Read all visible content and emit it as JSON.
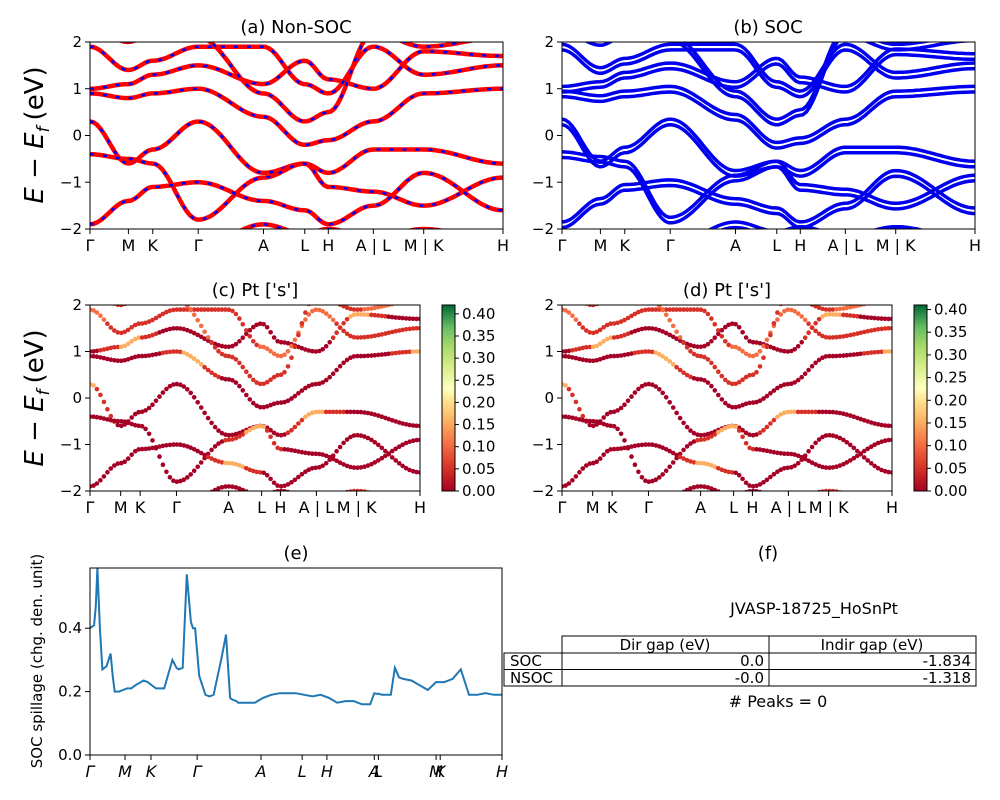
{
  "figure": {
    "panel_a_title": "(a) Non-SOC",
    "panel_b_title": "(b) SOC",
    "panel_c_title": "(c)  Pt ['s']",
    "panel_d_title": "(d) Pt ['s']",
    "panel_e_title": "(e)",
    "panel_f_title": "(f)",
    "energy_ylabel_main": "E − E",
    "energy_ylabel_sub": "f",
    "energy_ylabel_unit": "(eV)",
    "spillage_ylabel": "SOC spillage (chg. den. unit)",
    "kpath_labels": [
      "Γ",
      "M",
      "K",
      "Γ",
      "A",
      "L",
      "H",
      "A | L",
      "M | K",
      "H"
    ],
    "kpath_labels_italic": [
      "Γ",
      "M",
      "K",
      "Γ",
      "A",
      "L",
      "H",
      "A",
      "L",
      "M",
      "K",
      "H"
    ],
    "energy_yticks": [
      "2",
      "1",
      "0",
      "−1",
      "−2"
    ],
    "spillage_yticks": [
      "0.0",
      "0.2",
      "0.4"
    ],
    "colorbar_c_ticks": [
      "0.40",
      "0.35",
      "0.30",
      "0.25",
      "0.20",
      "0.15",
      "0.10",
      "0.05",
      "0.00"
    ],
    "colorbar_d_ticks": [
      "0.40",
      "0.35",
      "0.30",
      "0.25",
      "0.20",
      "0.15",
      "0.10",
      "0.05",
      "0.00"
    ],
    "colors": {
      "nsoc_band": "#ff0000",
      "nsoc_dash": "#0000ff",
      "soc_band": "#0000ee",
      "spillage_line": "#1f77b4"
    }
  },
  "table": {
    "title": "JVASP-18725_HoSnPt",
    "headers": [
      "",
      "Dir gap (eV)",
      "Indir gap (eV)"
    ],
    "rows": [
      {
        "label": "SOC",
        "dir_gap": "0.0",
        "indir_gap": "-1.834"
      },
      {
        "label": "NSOC",
        "dir_gap": "-0.0",
        "indir_gap": "-1.318"
      }
    ],
    "peaks": "# Peaks = 0"
  },
  "chart_data": [
    {
      "type": "line",
      "panel": "a",
      "title": "(a) Non-SOC",
      "ylabel": "E − E_f (eV)",
      "ylim": [
        -2,
        2
      ],
      "kpath": [
        "Γ",
        "M",
        "K",
        "Γ",
        "A",
        "L",
        "H",
        "A | L",
        "M | K",
        "H"
      ],
      "note": "band structure without spin-orbit coupling"
    },
    {
      "type": "line",
      "panel": "b",
      "title": "(b) SOC",
      "ylim": [
        -2,
        2
      ],
      "kpath": [
        "Γ",
        "M",
        "K",
        "Γ",
        "A",
        "L",
        "H",
        "A | L",
        "M | K",
        "H"
      ]
    },
    {
      "type": "scatter",
      "panel": "c",
      "title": "(c)  Pt ['s']",
      "ylabel": "E − E_f (eV)",
      "ylim": [
        -2,
        2
      ],
      "colorbar_range": [
        0.0,
        0.42
      ]
    },
    {
      "type": "scatter",
      "panel": "d",
      "title": "(d) Pt ['s']",
      "ylim": [
        -2,
        2
      ],
      "colorbar_range": [
        0.0,
        0.41
      ]
    },
    {
      "type": "line",
      "panel": "e",
      "title": "(e)",
      "ylabel": "SOC spillage (chg. den. unit)",
      "ylim": [
        0.0,
        0.59
      ],
      "x": [
        0.0,
        0.01,
        0.014,
        0.018,
        0.024,
        0.03,
        0.04,
        0.05,
        0.055,
        0.06,
        0.07,
        0.08,
        0.09,
        0.1,
        0.11,
        0.13,
        0.14,
        0.16,
        0.18,
        0.2,
        0.21,
        0.215,
        0.225,
        0.235,
        0.245,
        0.25,
        0.255,
        0.265,
        0.28,
        0.29,
        0.3,
        0.32,
        0.33,
        0.34,
        0.345,
        0.355,
        0.36,
        0.38,
        0.4,
        0.42,
        0.44,
        0.46,
        0.48,
        0.5,
        0.52,
        0.54,
        0.56,
        0.58,
        0.6,
        0.62,
        0.64,
        0.66,
        0.68,
        0.69,
        0.695,
        0.7,
        0.71,
        0.73,
        0.74,
        0.75,
        0.76,
        0.78,
        0.8,
        0.82,
        0.84,
        0.85,
        0.86,
        0.87,
        0.88,
        0.9,
        0.92,
        0.94,
        0.96,
        0.98,
        1.0
      ],
      "y": [
        0.4,
        0.41,
        0.47,
        0.59,
        0.4,
        0.27,
        0.28,
        0.32,
        0.25,
        0.2,
        0.2,
        0.205,
        0.21,
        0.21,
        0.22,
        0.235,
        0.23,
        0.21,
        0.21,
        0.3,
        0.275,
        0.27,
        0.275,
        0.57,
        0.42,
        0.4,
        0.4,
        0.25,
        0.19,
        0.185,
        0.19,
        0.31,
        0.38,
        0.18,
        0.175,
        0.17,
        0.165,
        0.165,
        0.165,
        0.18,
        0.19,
        0.195,
        0.195,
        0.195,
        0.19,
        0.185,
        0.19,
        0.18,
        0.165,
        0.17,
        0.17,
        0.16,
        0.16,
        0.195,
        0.193,
        0.193,
        0.19,
        0.19,
        0.275,
        0.245,
        0.24,
        0.235,
        0.22,
        0.205,
        0.23,
        0.23,
        0.23,
        0.235,
        0.24,
        0.27,
        0.19,
        0.19,
        0.195,
        0.19,
        0.19
      ]
    }
  ]
}
